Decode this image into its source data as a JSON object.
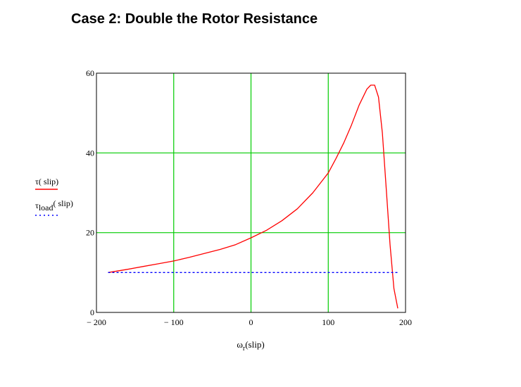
{
  "page": {
    "heading": "Case 2:  Double the Rotor Resistance"
  },
  "chart_data": {
    "type": "line",
    "xlabel_main": "ω",
    "xlabel_sub": "r",
    "xlabel_args": "(slip)",
    "xlim": [
      -200,
      200
    ],
    "ylim": [
      0,
      60
    ],
    "x_ticks": [
      -200,
      -100,
      0,
      100,
      200
    ],
    "x_tick_labels": [
      "− 200",
      "− 100",
      "0",
      "100",
      "200"
    ],
    "y_ticks": [
      0,
      20,
      40,
      60
    ],
    "y_tick_labels": [
      "0",
      "20",
      "40",
      "60"
    ],
    "grid": true,
    "grid_color": "#00cc00",
    "legend_position": "left",
    "series": [
      {
        "name": "τ( slip)",
        "color": "#ff0000",
        "style": "solid",
        "x": [
          -185,
          -160,
          -140,
          -120,
          -100,
          -80,
          -60,
          -40,
          -20,
          0,
          20,
          40,
          60,
          80,
          100,
          110,
          120,
          130,
          140,
          150,
          155,
          160,
          165,
          170,
          175,
          180,
          185,
          190
        ],
        "y": [
          10.0,
          10.8,
          11.5,
          12.2,
          12.9,
          13.8,
          14.8,
          15.8,
          17.0,
          18.7,
          20.6,
          23.0,
          26.0,
          30.0,
          35.0,
          38.6,
          42.5,
          47.0,
          52.0,
          56.0,
          57.0,
          57.0,
          54.0,
          45.0,
          31.0,
          17.0,
          6.0,
          1.0
        ]
      },
      {
        "name_main": "τ",
        "name_sub": "load",
        "name_args": "( slip)",
        "color": "#0000ff",
        "style": "dotted",
        "x": [
          -185,
          190
        ],
        "y": [
          10.0,
          10.0
        ]
      }
    ]
  }
}
